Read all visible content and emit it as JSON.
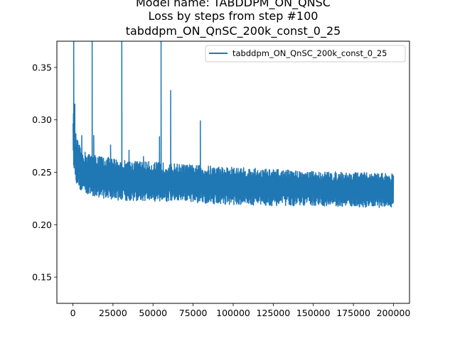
{
  "chart_data": {
    "type": "line",
    "title_lines": [
      "Model name: TABDDPM_ON_QNSC",
      "Loss by steps from step #100",
      "tabddpm_ON_QnSC_200k_const_0_25"
    ],
    "xlabel": "",
    "ylabel": "",
    "xlim": [
      -10000,
      210000
    ],
    "ylim": [
      0.125,
      0.375
    ],
    "x_ticks": [
      0,
      25000,
      50000,
      75000,
      100000,
      125000,
      150000,
      175000,
      200000
    ],
    "x_tick_labels": [
      "0",
      "25000",
      "50000",
      "75000",
      "100000",
      "125000",
      "150000",
      "175000",
      "200000"
    ],
    "y_ticks": [
      0.15,
      0.2,
      0.25,
      0.3,
      0.35
    ],
    "y_tick_labels": [
      "0.15",
      "0.20",
      "0.25",
      "0.30",
      "0.35"
    ],
    "grid": false,
    "legend_position": "top-right",
    "color": "#1f77b4",
    "series": [
      {
        "name": "tabddpm_ON_QnSC_200k_const_0_25",
        "color": "#1f77b4",
        "x_start": 100,
        "x_end": 200000,
        "band_upper": [
          [
            100,
            0.31
          ],
          [
            2000,
            0.285
          ],
          [
            5000,
            0.272
          ],
          [
            10000,
            0.268
          ],
          [
            20000,
            0.265
          ],
          [
            30000,
            0.262
          ],
          [
            50000,
            0.26
          ],
          [
            75000,
            0.257
          ],
          [
            100000,
            0.255
          ],
          [
            125000,
            0.253
          ],
          [
            150000,
            0.251
          ],
          [
            175000,
            0.25
          ],
          [
            200000,
            0.249
          ]
        ],
        "band_lower": [
          [
            100,
            0.26
          ],
          [
            2000,
            0.24
          ],
          [
            5000,
            0.232
          ],
          [
            10000,
            0.228
          ],
          [
            20000,
            0.225
          ],
          [
            30000,
            0.223
          ],
          [
            50000,
            0.222
          ],
          [
            75000,
            0.221
          ],
          [
            100000,
            0.219
          ],
          [
            125000,
            0.218
          ],
          [
            150000,
            0.218
          ],
          [
            175000,
            0.217
          ],
          [
            200000,
            0.216
          ]
        ],
        "spikes": [
          [
            500,
            0.375
          ],
          [
            1200,
            0.315
          ],
          [
            5500,
            0.285
          ],
          [
            12000,
            0.375
          ],
          [
            13000,
            0.285
          ],
          [
            23500,
            0.276
          ],
          [
            30500,
            0.375
          ],
          [
            35000,
            0.271
          ],
          [
            44000,
            0.265
          ],
          [
            54000,
            0.284
          ],
          [
            55000,
            0.375
          ],
          [
            61000,
            0.328
          ],
          [
            79500,
            0.299
          ]
        ]
      }
    ]
  }
}
